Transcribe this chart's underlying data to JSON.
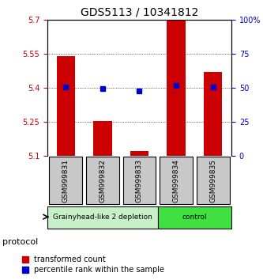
{
  "title": "GDS5113 / 10341812",
  "samples": [
    "GSM999831",
    "GSM999832",
    "GSM999833",
    "GSM999834",
    "GSM999835"
  ],
  "red_bar_tops": [
    5.54,
    5.255,
    5.12,
    5.7,
    5.47
  ],
  "red_bar_base": 5.1,
  "blue_dots": [
    50.5,
    49.5,
    47.5,
    52.0,
    50.5
  ],
  "ylim_left": [
    5.1,
    5.7
  ],
  "ylim_right": [
    0,
    100
  ],
  "yticks_left": [
    5.1,
    5.25,
    5.4,
    5.55,
    5.7
  ],
  "yticks_right": [
    0,
    25,
    50,
    75,
    100
  ],
  "ytick_labels_right": [
    "0",
    "25",
    "50",
    "75",
    "100%"
  ],
  "groups": [
    {
      "label": "Grainyhead-like 2 depletion",
      "indices": [
        0,
        1,
        2
      ],
      "color": "#c8f0c8"
    },
    {
      "label": "control",
      "indices": [
        3,
        4
      ],
      "color": "#40e040"
    }
  ],
  "group_row_label": "protocol",
  "red_color": "#cc0000",
  "blue_color": "#0000cc",
  "bar_width": 0.5,
  "sample_box_color": "#c8c8c8",
  "sample_box_edgecolor": "#000000",
  "grid_color": "#000000",
  "legend_red_label": "transformed count",
  "legend_blue_label": "percentile rank within the sample"
}
